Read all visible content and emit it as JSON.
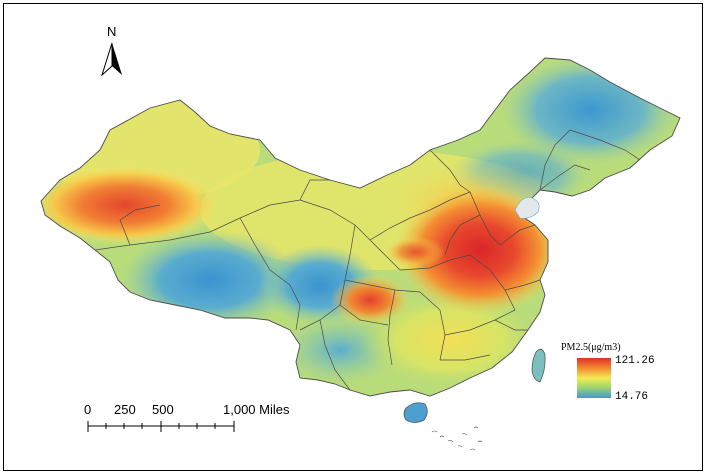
{
  "map": {
    "north_label": "N",
    "scale_labels": [
      "0",
      "250",
      "500",
      "1,000 Miles"
    ]
  },
  "legend": {
    "title": "PM2.5(μg/m3)",
    "max": "121.26",
    "min": "14.76",
    "color_high": "#e0302a",
    "color_mid": "#f6eb55",
    "color_low": "#3c9ad2"
  }
}
